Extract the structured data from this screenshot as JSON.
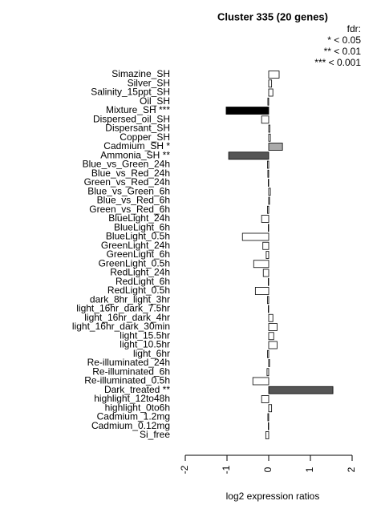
{
  "chart_data": {
    "type": "bar",
    "orientation": "horizontal",
    "title": "Cluster 335 (20 genes)",
    "legend_title": "fdr:",
    "legend_lines": [
      "* < 0.05",
      "** < 0.01",
      "*** < 0.001"
    ],
    "x_label": "log2 expression ratios",
    "categories": [
      "Simazine_SH",
      "Silver_SH",
      "Salinity_15ppt_SH",
      "Oil_SH",
      "Mixture_SH ***",
      "Dispersed_oil_SH",
      "Dispersant_SH",
      "Copper_SH",
      "Cadmium_SH *",
      "Ammonia_SH **",
      "Blue_vs_Green_24h",
      "Blue_vs_Red_24h",
      "Green_vs_Red_24h",
      "Blue_vs_Green_6h",
      "Blue_vs_Red_6h",
      "Green_vs_Red_6h",
      "BlueLight_24h",
      "BlueLight_6h",
      "BlueLight_0.5h",
      "GreenLight_24h",
      "GreenLight_6h",
      "GreenLight_0.5h",
      "RedLight_24h",
      "RedLight_6h",
      "RedLight_0.5h",
      "dark_8hr_light_3hr",
      "light_16hr_dark_7.5hr",
      "light_16hr_dark_4hr",
      "light_16hr_dark_30min",
      "light_15.5hr",
      "light_10.5hr",
      "light_6hr",
      "Re-illuminated_24h",
      "Re-illuminated_6h",
      "Re-illuminated_0.5h",
      "Dark_treated **",
      "highlight_12to48h",
      "highlight_0to6h",
      "Cadmium_1.2mg",
      "Cadmium_0.12mg",
      "Si_free"
    ],
    "values": [
      0.25,
      0.07,
      0.1,
      -0.02,
      -1.02,
      -0.17,
      0.03,
      0.04,
      0.33,
      -0.96,
      -0.03,
      -0.02,
      -0.01,
      0.04,
      0.02,
      -0.03,
      -0.17,
      -0.01,
      -0.63,
      -0.14,
      -0.06,
      -0.36,
      -0.13,
      -0.01,
      -0.32,
      -0.03,
      -0.01,
      0.1,
      0.2,
      0.12,
      0.2,
      -0.03,
      0.02,
      -0.04,
      -0.38,
      1.54,
      -0.17,
      0.07,
      -0.02,
      -0.01,
      -0.07
    ],
    "colors": [
      "#ffffff",
      "#ffffff",
      "#ffffff",
      "#ffffff",
      "#000000",
      "#ffffff",
      "#ffffff",
      "#ffffff",
      "#aaaaaa",
      "#555555",
      "#ffffff",
      "#ffffff",
      "#ffffff",
      "#ffffff",
      "#ffffff",
      "#ffffff",
      "#ffffff",
      "#ffffff",
      "#ffffff",
      "#ffffff",
      "#ffffff",
      "#ffffff",
      "#ffffff",
      "#ffffff",
      "#ffffff",
      "#ffffff",
      "#ffffff",
      "#ffffff",
      "#ffffff",
      "#ffffff",
      "#ffffff",
      "#ffffff",
      "#ffffff",
      "#ffffff",
      "#ffffff",
      "#555555",
      "#ffffff",
      "#ffffff",
      "#ffffff",
      "#ffffff",
      "#ffffff"
    ],
    "xlim": [
      -2,
      2
    ],
    "xticks": [
      -2,
      -1,
      0,
      1,
      2
    ]
  }
}
